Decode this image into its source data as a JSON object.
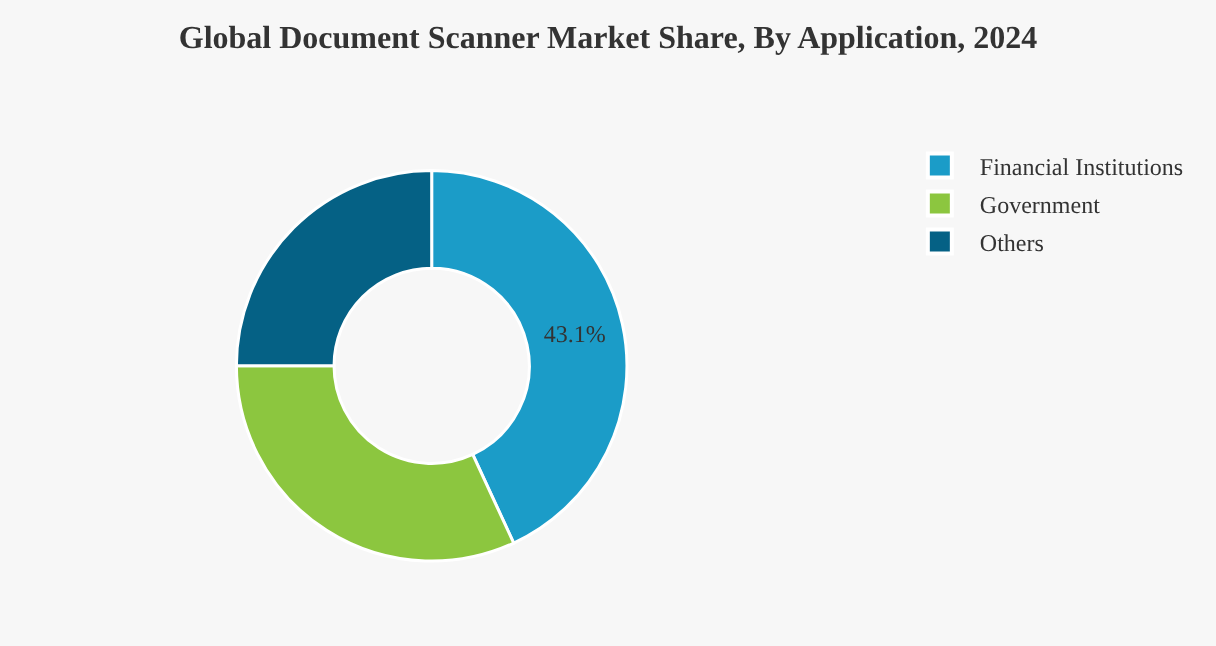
{
  "chart_data": {
    "type": "donut",
    "title": "Global Document Scanner Market Share, By Application, 2024",
    "categories": [
      "Financial Institutions",
      "Government",
      "Others"
    ],
    "values": [
      43.1,
      31.9,
      25.0
    ],
    "colors": [
      "#1b9cc8",
      "#8cc63f",
      "#056185"
    ],
    "value_labels": [
      "43.1%",
      null,
      null
    ],
    "legend": "top right"
  }
}
